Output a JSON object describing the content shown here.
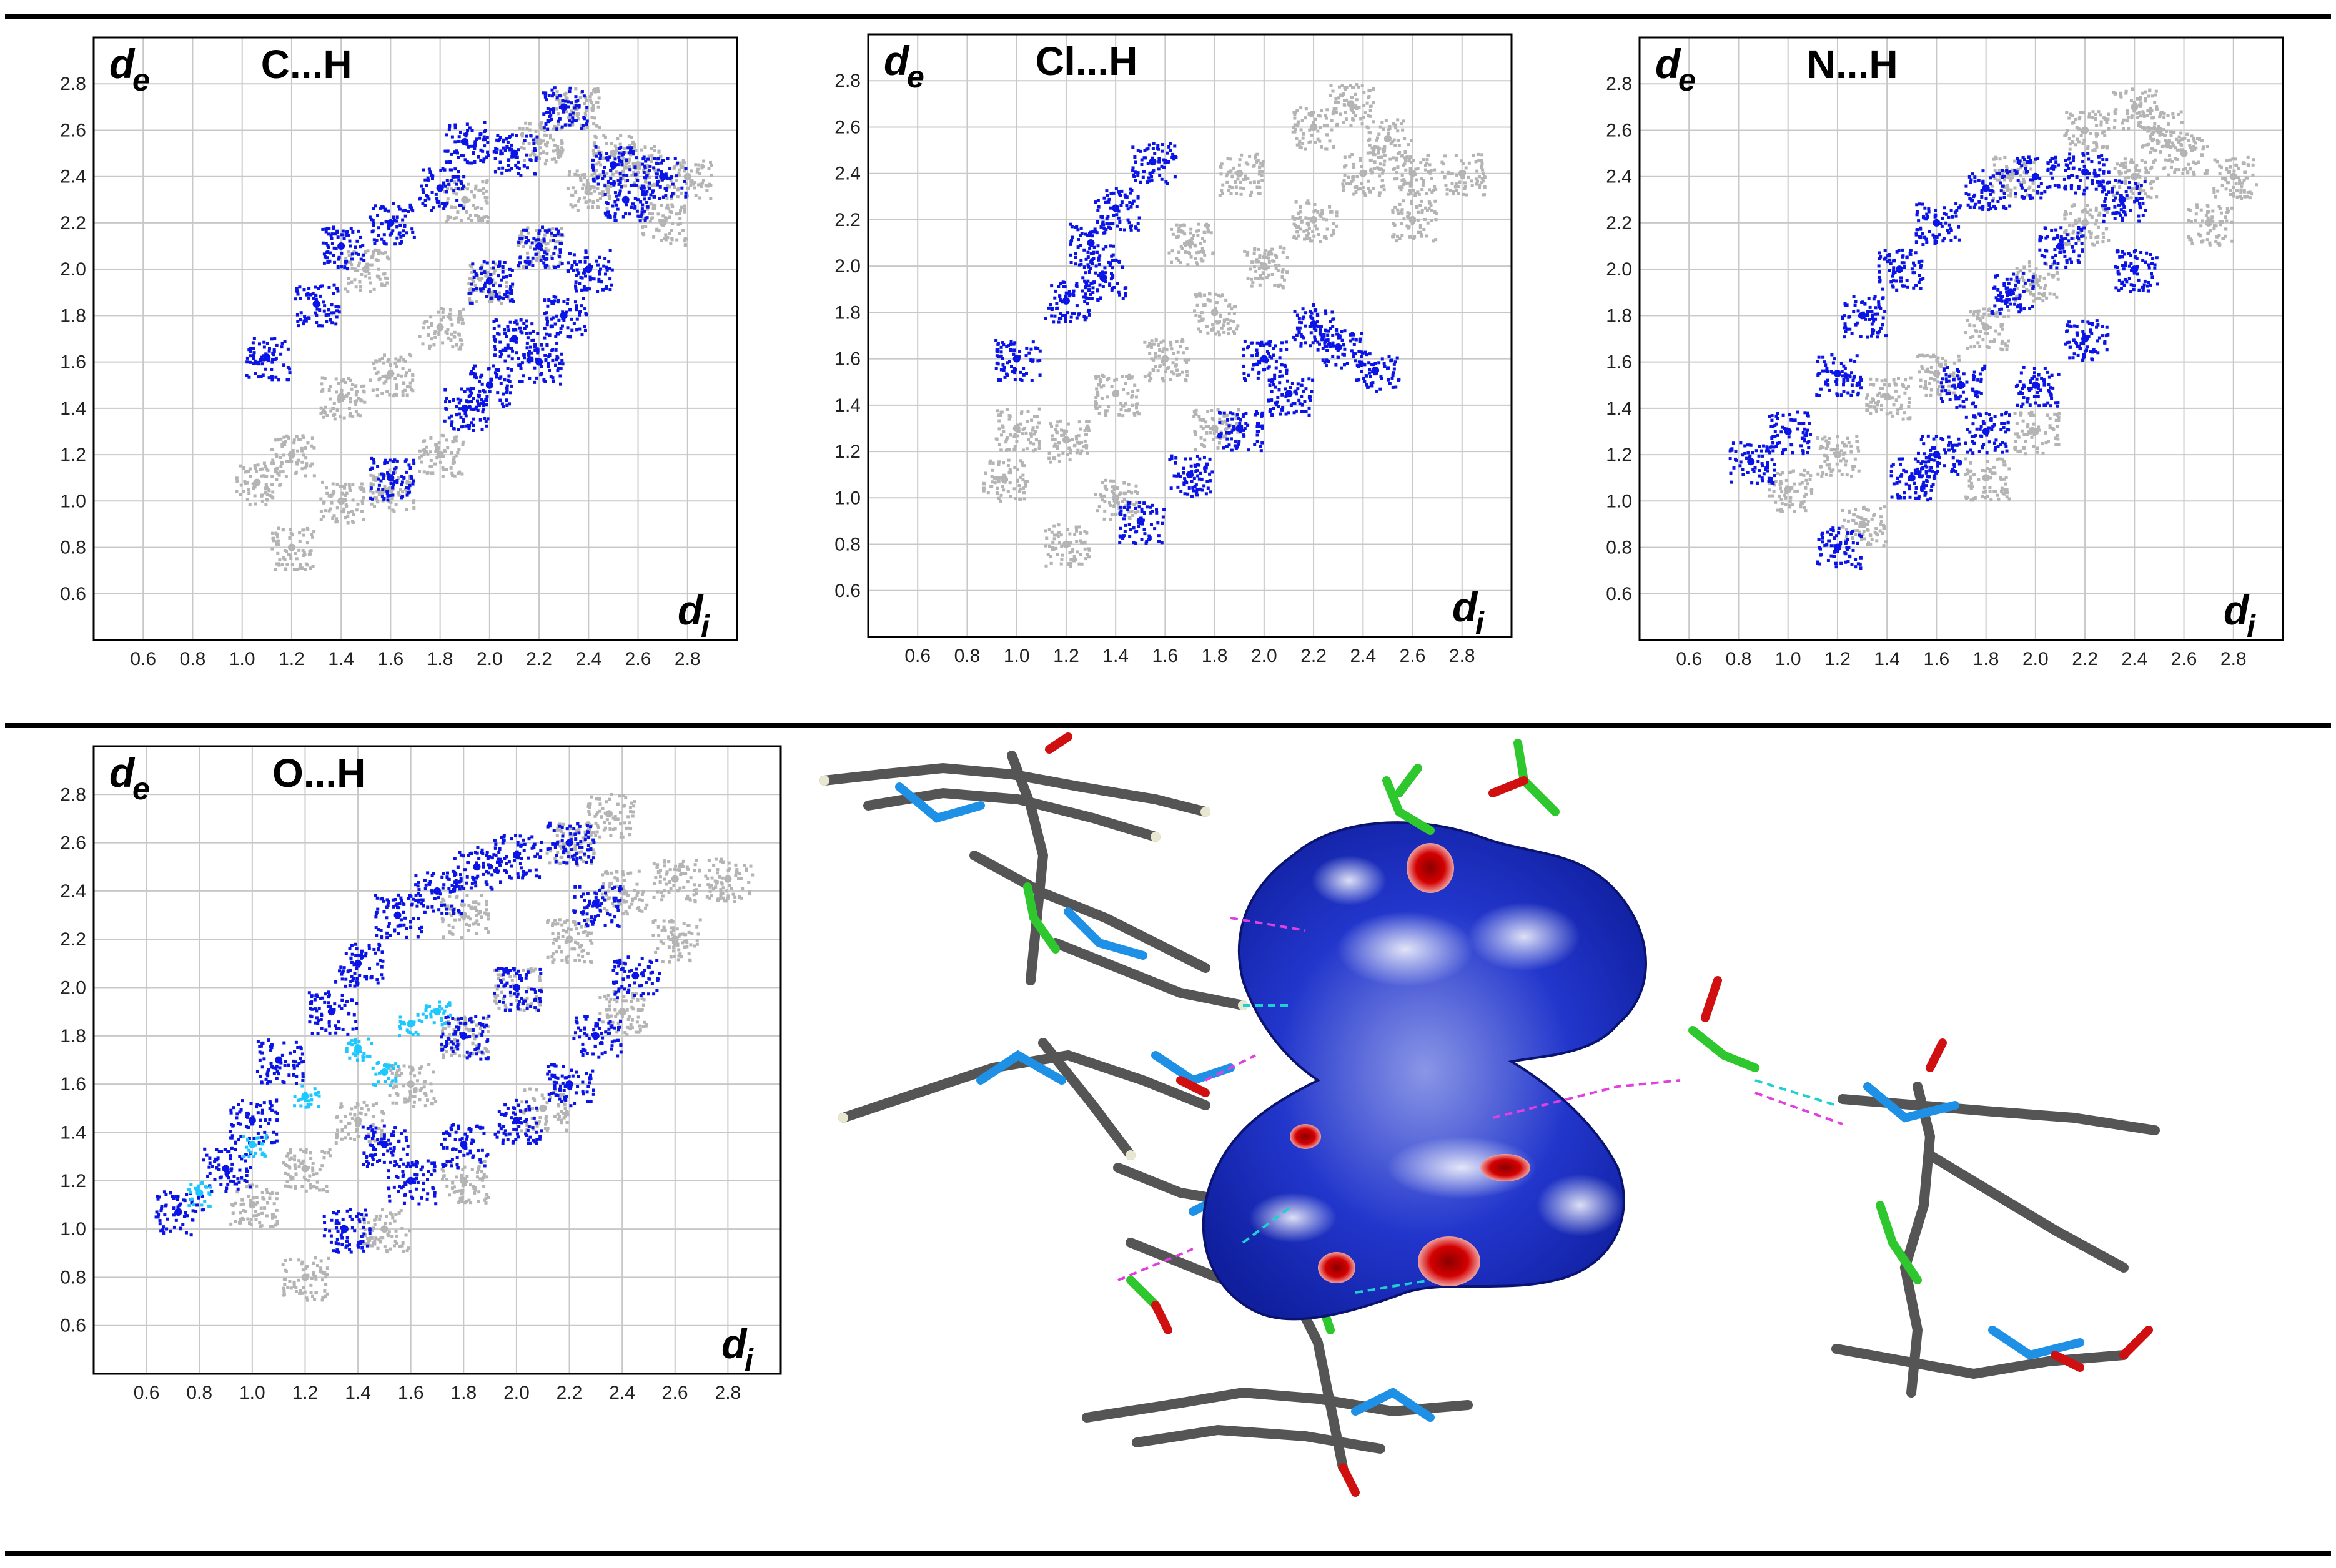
{
  "colors": {
    "grey": "#b4b4b4",
    "blue": "#0a14e6",
    "light_blue": "#1ec8ff",
    "grid": "#c8c8c8",
    "surface_blue": "#1e32c8",
    "spot_red": "#c00000"
  },
  "axis_labels": {
    "de": "d",
    "de_sub": "e",
    "di": "d",
    "di_sub": "i"
  },
  "chart_data": [
    {
      "type": "scatter",
      "title": "C...H",
      "xlabel": "di",
      "ylabel": "de",
      "xlim": [
        0.4,
        3.0
      ],
      "ylim": [
        0.4,
        3.0
      ],
      "xticks": [
        "0.6",
        "0.8",
        "1.0",
        "1.2",
        "1.4",
        "1.6",
        "1.8",
        "2.0",
        "2.2",
        "2.4",
        "2.6",
        "2.8"
      ],
      "yticks": [
        "0.6",
        "0.8",
        "1.0",
        "1.2",
        "1.4",
        "1.6",
        "1.8",
        "2.0",
        "2.2",
        "2.4",
        "2.6",
        "2.8"
      ],
      "grid": true,
      "series": [
        {
          "role": "all-contacts",
          "color": "grey",
          "points": [
            [
              1.06,
              1.08
            ],
            [
              1.2,
              1.2
            ],
            [
              1.4,
              1.45
            ],
            [
              1.6,
              1.55
            ],
            [
              1.8,
              1.75
            ],
            [
              2.0,
              1.95
            ],
            [
              2.2,
              2.1
            ],
            [
              2.4,
              2.35
            ],
            [
              2.5,
              2.5
            ],
            [
              2.6,
              2.45
            ],
            [
              2.8,
              2.4
            ],
            [
              1.2,
              0.8
            ],
            [
              1.4,
              1.0
            ],
            [
              1.6,
              1.05
            ],
            [
              1.8,
              1.2
            ],
            [
              1.5,
              2.0
            ],
            [
              1.9,
              2.3
            ],
            [
              2.2,
              2.55
            ],
            [
              2.35,
              2.7
            ],
            [
              2.7,
              2.2
            ]
          ]
        },
        {
          "role": "highlighted",
          "color": "blue",
          "points": [
            [
              1.1,
              1.62
            ],
            [
              1.3,
              1.85
            ],
            [
              1.4,
              2.1
            ],
            [
              1.6,
              2.2
            ],
            [
              1.8,
              2.35
            ],
            [
              1.9,
              2.55
            ],
            [
              2.1,
              2.5
            ],
            [
              2.3,
              2.7
            ],
            [
              2.5,
              2.45
            ],
            [
              2.55,
              2.3
            ],
            [
              2.4,
              2.0
            ],
            [
              2.3,
              1.8
            ],
            [
              2.2,
              1.6
            ],
            [
              2.0,
              1.5
            ],
            [
              1.6,
              1.1
            ],
            [
              1.9,
              1.4
            ],
            [
              2.1,
              1.7
            ],
            [
              2.2,
              2.1
            ],
            [
              2.0,
              1.95
            ],
            [
              2.7,
              2.4
            ]
          ]
        }
      ]
    },
    {
      "type": "scatter",
      "title": "Cl...H",
      "xlabel": "di",
      "ylabel": "de",
      "xlim": [
        0.4,
        3.0
      ],
      "ylim": [
        0.4,
        3.0
      ],
      "xticks": [
        "0.6",
        "0.8",
        "1.0",
        "1.2",
        "1.4",
        "1.6",
        "1.8",
        "2.0",
        "2.2",
        "2.4",
        "2.6",
        "2.8"
      ],
      "yticks": [
        "0.6",
        "0.8",
        "1.0",
        "1.2",
        "1.4",
        "1.6",
        "1.8",
        "2.0",
        "2.2",
        "2.4",
        "2.6",
        "2.8"
      ],
      "grid": true,
      "series": [
        {
          "role": "all-contacts",
          "color": "grey",
          "points": [
            [
              0.95,
              1.08
            ],
            [
              1.2,
              1.25
            ],
            [
              1.4,
              1.45
            ],
            [
              1.6,
              1.6
            ],
            [
              1.8,
              1.8
            ],
            [
              2.0,
              2.0
            ],
            [
              2.2,
              2.2
            ],
            [
              2.4,
              2.4
            ],
            [
              2.5,
              2.55
            ],
            [
              2.6,
              2.4
            ],
            [
              2.8,
              2.4
            ],
            [
              1.2,
              0.8
            ],
            [
              1.4,
              1.0
            ],
            [
              1.8,
              1.3
            ],
            [
              1.7,
              2.1
            ],
            [
              1.9,
              2.4
            ],
            [
              2.2,
              2.6
            ],
            [
              2.35,
              2.7
            ],
            [
              2.6,
              2.2
            ],
            [
              1.0,
              1.3
            ]
          ]
        },
        {
          "role": "highlighted",
          "color": "blue",
          "points": [
            [
              1.0,
              1.6
            ],
            [
              1.2,
              1.85
            ],
            [
              1.3,
              2.1
            ],
            [
              1.4,
              2.25
            ],
            [
              1.55,
              2.45
            ],
            [
              1.5,
              0.9
            ],
            [
              1.7,
              1.1
            ],
            [
              1.9,
              1.3
            ],
            [
              2.1,
              1.45
            ],
            [
              2.3,
              1.65
            ],
            [
              2.45,
              1.55
            ],
            [
              2.2,
              1.75
            ],
            [
              1.35,
              1.95
            ],
            [
              2.0,
              1.6
            ]
          ]
        }
      ]
    },
    {
      "type": "scatter",
      "title": "N...H",
      "xlabel": "di",
      "ylabel": "de",
      "xlim": [
        0.4,
        3.0
      ],
      "ylim": [
        0.4,
        3.0
      ],
      "xticks": [
        "0.6",
        "0.8",
        "1.0",
        "1.2",
        "1.4",
        "1.6",
        "1.8",
        "2.0",
        "2.2",
        "2.4",
        "2.6",
        "2.8"
      ],
      "yticks": [
        "0.6",
        "0.8",
        "1.0",
        "1.2",
        "1.4",
        "1.6",
        "1.8",
        "2.0",
        "2.2",
        "2.4",
        "2.6",
        "2.8"
      ],
      "grid": true,
      "series": [
        {
          "role": "all-contacts",
          "color": "grey",
          "points": [
            [
              1.0,
              1.05
            ],
            [
              1.2,
              1.2
            ],
            [
              1.4,
              1.45
            ],
            [
              1.6,
              1.55
            ],
            [
              1.8,
              1.75
            ],
            [
              2.0,
              1.95
            ],
            [
              2.2,
              2.2
            ],
            [
              2.4,
              2.4
            ],
            [
              2.6,
              2.5
            ],
            [
              2.8,
              2.4
            ],
            [
              2.5,
              2.6
            ],
            [
              1.3,
              0.9
            ],
            [
              1.8,
              1.1
            ],
            [
              2.0,
              1.3
            ],
            [
              1.9,
              2.4
            ],
            [
              2.2,
              2.6
            ],
            [
              2.4,
              2.7
            ],
            [
              2.7,
              2.2
            ]
          ]
        },
        {
          "role": "highlighted",
          "color": "blue",
          "points": [
            [
              0.85,
              1.17
            ],
            [
              1.0,
              1.3
            ],
            [
              1.2,
              1.55
            ],
            [
              1.3,
              1.8
            ],
            [
              1.45,
              2.0
            ],
            [
              1.6,
              2.2
            ],
            [
              1.8,
              2.35
            ],
            [
              2.0,
              2.4
            ],
            [
              2.2,
              2.42
            ],
            [
              2.35,
              2.3
            ],
            [
              2.4,
              2.0
            ],
            [
              2.2,
              1.7
            ],
            [
              2.0,
              1.5
            ],
            [
              1.8,
              1.3
            ],
            [
              1.2,
              0.8
            ],
            [
              1.5,
              1.1
            ],
            [
              1.7,
              1.5
            ],
            [
              1.9,
              1.9
            ],
            [
              2.1,
              2.1
            ],
            [
              1.6,
              1.2
            ]
          ]
        }
      ]
    },
    {
      "type": "scatter",
      "title": "O...H",
      "xlabel": "di",
      "ylabel": "de",
      "xlim": [
        0.4,
        3.0
      ],
      "ylim": [
        0.4,
        3.0
      ],
      "xticks": [
        "0.6",
        "0.8",
        "1.0",
        "1.2",
        "1.4",
        "1.6",
        "1.8",
        "2.0",
        "2.2",
        "2.4",
        "2.6",
        "2.8"
      ],
      "yticks": [
        "0.6",
        "0.8",
        "1.0",
        "1.2",
        "1.4",
        "1.6",
        "1.8",
        "2.0",
        "2.2",
        "2.4",
        "2.6",
        "2.8"
      ],
      "grid": true,
      "series": [
        {
          "role": "all-contacts",
          "color": "grey",
          "points": [
            [
              1.0,
              1.1
            ],
            [
              1.2,
              1.25
            ],
            [
              1.4,
              1.45
            ],
            [
              1.6,
              1.6
            ],
            [
              1.8,
              1.8
            ],
            [
              2.0,
              2.0
            ],
            [
              2.2,
              2.2
            ],
            [
              2.4,
              2.4
            ],
            [
              2.6,
              2.45
            ],
            [
              2.8,
              2.45
            ],
            [
              1.2,
              0.8
            ],
            [
              1.5,
              1.0
            ],
            [
              1.8,
              1.2
            ],
            [
              2.1,
              1.5
            ],
            [
              2.4,
              1.9
            ],
            [
              2.6,
              2.2
            ],
            [
              1.8,
              2.3
            ],
            [
              2.2,
              2.6
            ],
            [
              2.35,
              2.72
            ]
          ]
        },
        {
          "role": "highlighted",
          "color": "blue",
          "points": [
            [
              0.72,
              1.07
            ],
            [
              0.9,
              1.25
            ],
            [
              1.0,
              1.45
            ],
            [
              1.1,
              1.7
            ],
            [
              1.3,
              1.9
            ],
            [
              1.4,
              2.1
            ],
            [
              1.55,
              2.3
            ],
            [
              1.7,
              2.4
            ],
            [
              1.85,
              2.5
            ],
            [
              2.0,
              2.55
            ],
            [
              2.2,
              2.6
            ],
            [
              2.3,
              2.35
            ],
            [
              2.45,
              2.05
            ],
            [
              2.3,
              1.8
            ],
            [
              2.2,
              1.6
            ],
            [
              2.0,
              1.45
            ],
            [
              1.8,
              1.35
            ],
            [
              1.6,
              1.2
            ],
            [
              1.35,
              1.0
            ],
            [
              1.5,
              1.35
            ],
            [
              1.8,
              1.8
            ],
            [
              2.0,
              2.0
            ]
          ]
        },
        {
          "role": "dense-core",
          "color": "light_blue",
          "points": [
            [
              0.8,
              1.15
            ],
            [
              1.0,
              1.35
            ],
            [
              1.2,
              1.55
            ],
            [
              1.4,
              1.75
            ],
            [
              1.6,
              1.85
            ],
            [
              1.7,
              1.9
            ],
            [
              1.5,
              1.65
            ]
          ]
        }
      ]
    }
  ]
}
